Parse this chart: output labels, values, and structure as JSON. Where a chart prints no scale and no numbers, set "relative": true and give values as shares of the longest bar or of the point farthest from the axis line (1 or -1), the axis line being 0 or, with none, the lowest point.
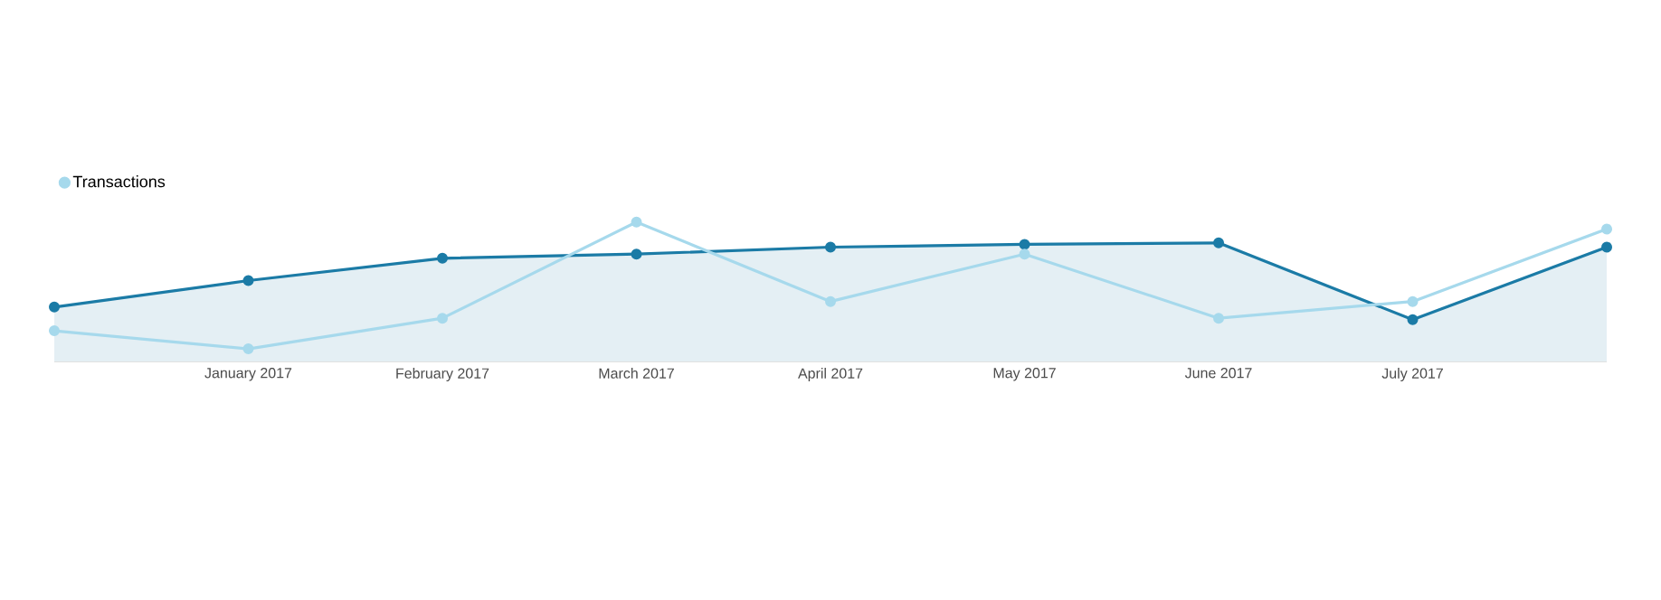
{
  "chart_data": {
    "type": "line",
    "relative": true,
    "legend": "top left",
    "marker": "circle",
    "line_style": "solid",
    "categories": [
      null,
      "January 2017",
      "February 2017",
      "March 2017",
      "April 2017",
      "May 2017",
      "June 2017",
      "July 2017",
      null
    ],
    "series": [
      {
        "type": "area",
        "color": "#1b7ba6",
        "values": [
          0.39,
          0.58,
          0.74,
          0.77,
          0.82,
          0.84,
          0.85,
          0.3,
          0.82
        ]
      },
      {
        "name": "Transactions",
        "color": "#a6d9ec",
        "values": [
          0.22,
          0.09,
          0.31,
          1,
          0.43,
          0.77,
          0.31,
          0.43,
          0.95
        ]
      }
    ]
  }
}
